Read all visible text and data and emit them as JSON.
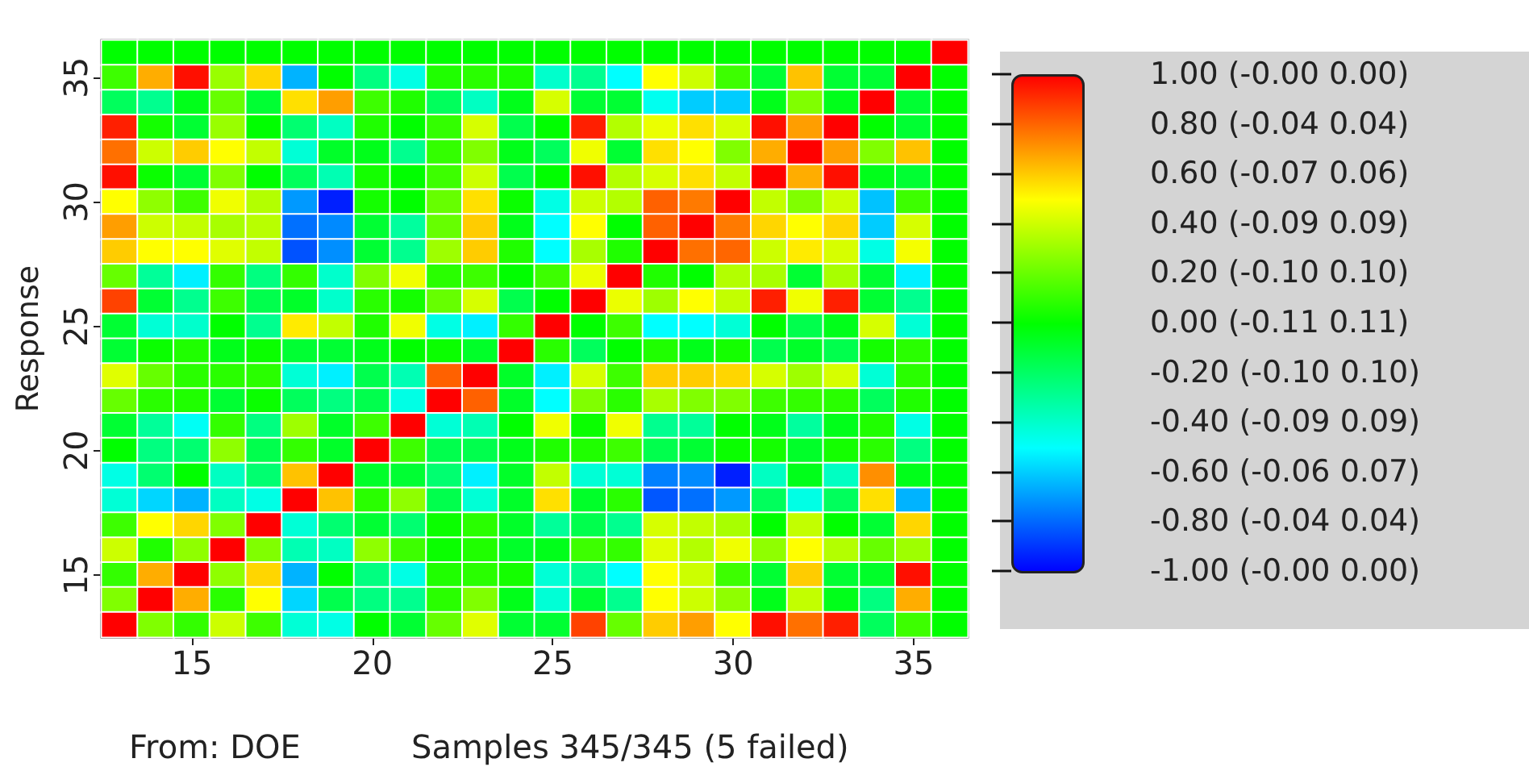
{
  "chart_data": {
    "type": "heatmap",
    "ylabel": "Response",
    "categories": [
      null,
      null,
      "15",
      null,
      null,
      null,
      null,
      "20",
      null,
      null,
      null,
      null,
      "25",
      null,
      null,
      null,
      null,
      "30",
      null,
      null,
      null,
      null,
      "35",
      null
    ],
    "y_categories": [
      null,
      "35",
      null,
      null,
      null,
      null,
      "30",
      null,
      null,
      null,
      null,
      "25",
      null,
      null,
      null,
      null,
      "20",
      null,
      null,
      null,
      null,
      "15",
      null,
      null
    ],
    "cells": [
      [
        0,
        0,
        0,
        0,
        0,
        0,
        0,
        0,
        0,
        0,
        0,
        0,
        0,
        0,
        0,
        0,
        0,
        0,
        0,
        0,
        0,
        0,
        0,
        1
      ],
      [
        0.12,
        0.66,
        0.97,
        0.3,
        0.58,
        -0.65,
        0,
        -0.25,
        -0.45,
        0.06,
        0.08,
        0.05,
        -0.4,
        -0.28,
        -0.5,
        0.5,
        0.4,
        0.12,
        -0.1,
        0.62,
        -0.1,
        -0.1,
        1,
        0
      ],
      [
        -0.18,
        -0.28,
        -0.05,
        0.2,
        -0.1,
        0.56,
        0.69,
        0.12,
        0.06,
        -0.18,
        -0.38,
        -0.05,
        0.42,
        -0.1,
        -0.1,
        -0.47,
        -0.6,
        -0.6,
        -0.05,
        0.25,
        -0.05,
        1,
        -0.1,
        0
      ],
      [
        0.94,
        0.04,
        -0.1,
        0.3,
        0,
        -0.22,
        -0.38,
        0.06,
        0,
        0.1,
        0.42,
        -0.15,
        0,
        0.94,
        0.35,
        0.46,
        0.56,
        0.42,
        0.97,
        0.69,
        1,
        0,
        -0.1,
        0
      ],
      [
        0.78,
        0.4,
        0.6,
        0.5,
        0.38,
        -0.42,
        -0.08,
        -0.05,
        -0.28,
        0.1,
        0.25,
        -0.05,
        -0.18,
        0.47,
        -0.1,
        0.56,
        0.5,
        0.25,
        0.66,
        1,
        0.69,
        0.25,
        0.62,
        0
      ],
      [
        0.97,
        0.02,
        -0.1,
        0.25,
        0,
        -0.18,
        -0.35,
        0.04,
        0,
        0.12,
        0.4,
        -0.15,
        0,
        0.97,
        0.35,
        0.42,
        0.56,
        0.38,
        1,
        0.66,
        0.97,
        -0.05,
        -0.1,
        0
      ],
      [
        0.5,
        0.28,
        0.12,
        0.47,
        0.35,
        -0.7,
        -0.94,
        0.04,
        0,
        0.2,
        0.56,
        0.02,
        -0.45,
        0.4,
        0.35,
        0.81,
        0.76,
        1,
        0.38,
        0.25,
        0.4,
        -0.62,
        0.12,
        0
      ],
      [
        0.69,
        0.4,
        0.38,
        0.33,
        0.36,
        -0.78,
        -0.73,
        -0.1,
        -0.31,
        0.2,
        0.6,
        -0.05,
        -0.5,
        0.5,
        0,
        0.81,
        1,
        0.76,
        0.58,
        0.5,
        0.58,
        -0.6,
        0.42,
        0
      ],
      [
        0.6,
        0.5,
        0.5,
        0.44,
        0.38,
        -0.84,
        -0.72,
        -0.1,
        -0.28,
        0.31,
        0.6,
        0.06,
        -0.5,
        0.33,
        0.06,
        1,
        0.78,
        0.8,
        0.4,
        0.54,
        0.42,
        -0.45,
        0.48,
        0
      ],
      [
        0.2,
        -0.3,
        -0.53,
        0.1,
        -0.25,
        0.1,
        -0.4,
        0.25,
        0.47,
        0.08,
        0.12,
        0,
        0.12,
        0.46,
        1,
        0.06,
        0,
        0.35,
        0.33,
        -0.1,
        0.33,
        -0.1,
        -0.53,
        0
      ],
      [
        0.87,
        -0.1,
        -0.28,
        0.12,
        -0.15,
        -0.08,
        -0.4,
        0.08,
        0.04,
        0.2,
        0.42,
        -0.15,
        0,
        1,
        0.46,
        0.31,
        0.5,
        0.38,
        0.94,
        0.47,
        0.94,
        -0.1,
        -0.28,
        0
      ],
      [
        -0.1,
        -0.42,
        -0.4,
        0,
        -0.28,
        0.54,
        0.38,
        0.06,
        0.47,
        -0.45,
        -0.53,
        0.1,
        1,
        0,
        0.12,
        -0.5,
        -0.5,
        -0.42,
        0,
        -0.15,
        -0.05,
        0.42,
        -0.42,
        0
      ],
      [
        -0.1,
        0.02,
        0.06,
        -0.05,
        0.02,
        -0.1,
        -0.1,
        -0.05,
        0,
        0.02,
        -0.08,
        1,
        0.08,
        -0.18,
        0,
        0.06,
        -0.05,
        0.04,
        -0.15,
        -0.08,
        -0.15,
        0.04,
        0.08,
        0
      ],
      [
        0.44,
        0.2,
        0.08,
        0.08,
        0.08,
        -0.42,
        -0.53,
        -0.15,
        -0.35,
        0.81,
        1,
        -0.08,
        -0.53,
        0.42,
        0.12,
        0.6,
        0.6,
        0.58,
        0.42,
        0.31,
        0.42,
        -0.42,
        0.08,
        0
      ],
      [
        0.2,
        0.08,
        0.06,
        -0.1,
        0.02,
        -0.18,
        -0.25,
        -0.15,
        -0.45,
        1,
        0.81,
        -0.08,
        -0.5,
        0.25,
        0.08,
        0.33,
        0.25,
        0.25,
        0.12,
        0.1,
        0.08,
        -0.18,
        0.06,
        0
      ],
      [
        -0.1,
        -0.3,
        -0.48,
        0.1,
        -0.25,
        0.31,
        -0.08,
        0.12,
        1,
        -0.42,
        -0.35,
        0,
        0.47,
        0.02,
        0.47,
        -0.28,
        -0.3,
        0,
        -0.05,
        -0.31,
        -0.05,
        0.06,
        -0.45,
        0
      ],
      [
        0,
        -0.25,
        -0.22,
        0.28,
        -0.15,
        0.1,
        -0.08,
        1,
        0.12,
        -0.15,
        -0.15,
        -0.05,
        0.06,
        0.06,
        0.12,
        -0.15,
        -0.1,
        0.02,
        0.04,
        -0.08,
        0.04,
        0.08,
        -0.25,
        0
      ],
      [
        -0.45,
        -0.22,
        0,
        -0.38,
        -0.22,
        0.62,
        1,
        -0.08,
        -0.1,
        -0.22,
        -0.53,
        -0.08,
        0.38,
        -0.42,
        -0.42,
        -0.75,
        -0.73,
        -0.94,
        -0.38,
        -0.05,
        -0.38,
        0.72,
        -0.05,
        0
      ],
      [
        -0.42,
        -0.58,
        -0.65,
        -0.38,
        -0.45,
        1,
        0.62,
        0.08,
        0.28,
        -0.15,
        -0.42,
        -0.08,
        0.56,
        -0.08,
        0.08,
        -0.83,
        -0.78,
        -0.7,
        -0.18,
        -0.45,
        -0.18,
        0.56,
        -0.65,
        0
      ],
      [
        0.12,
        0.5,
        0.58,
        0.25,
        1,
        -0.42,
        -0.22,
        -0.1,
        -0.22,
        0.02,
        0.08,
        -0.08,
        -0.3,
        -0.15,
        -0.28,
        0.42,
        0.38,
        0.33,
        0,
        0.38,
        0,
        -0.1,
        0.58,
        0
      ],
      [
        0.4,
        0.06,
        0.28,
        1,
        0.25,
        -0.35,
        -0.38,
        0.28,
        0.12,
        0.02,
        0.06,
        -0.08,
        -0.05,
        0.12,
        0.1,
        0.44,
        0.35,
        0.47,
        0.28,
        0.5,
        0.35,
        0.2,
        0.31,
        0
      ],
      [
        0.1,
        0.66,
        1,
        0.28,
        0.58,
        -0.65,
        0,
        -0.25,
        -0.45,
        0.06,
        0.08,
        0.04,
        -0.42,
        -0.28,
        -0.5,
        0.5,
        0.4,
        0.12,
        -0.1,
        0.6,
        -0.1,
        -0.08,
        0.97,
        0
      ],
      [
        0.25,
        1,
        0.66,
        0.08,
        0.5,
        -0.58,
        -0.15,
        -0.25,
        -0.28,
        0.08,
        0.25,
        -0.05,
        -0.42,
        -0.1,
        -0.28,
        0.5,
        0.4,
        0.28,
        -0.05,
        0.38,
        -0.05,
        -0.25,
        0.66,
        0
      ],
      [
        1,
        0.25,
        0.1,
        0.4,
        0.12,
        -0.42,
        -0.45,
        0,
        -0.1,
        0.2,
        0.44,
        -0.1,
        -0.1,
        0.87,
        0.2,
        0.6,
        0.69,
        0.5,
        0.97,
        0.78,
        0.94,
        -0.18,
        0.12,
        0
      ]
    ],
    "clim": [
      -1,
      1
    ],
    "cticks": [
      {
        "value": 1,
        "label": "1.00 (-0.00 0.00)"
      },
      {
        "value": 0.8,
        "label": "0.80 (-0.04 0.04)"
      },
      {
        "value": 0.6,
        "label": "0.60 (-0.07 0.06)"
      },
      {
        "value": 0.4,
        "label": "0.40 (-0.09 0.09)"
      },
      {
        "value": 0.2,
        "label": "0.20 (-0.10 0.10)"
      },
      {
        "value": 0,
        "label": "0.00 (-0.11 0.11)"
      },
      {
        "value": -0.2,
        "label": "-0.20 (-0.10 0.10)"
      },
      {
        "value": -0.4,
        "label": "-0.40 (-0.09 0.09)"
      },
      {
        "value": -0.6,
        "label": "-0.60 (-0.06 0.07)"
      },
      {
        "value": -0.8,
        "label": "-0.80 (-0.04 0.04)"
      },
      {
        "value": -1,
        "label": "-1.00 (-0.00 0.00)"
      }
    ],
    "annotations": [
      "From: DOE",
      "Samples 345/345 (5 failed)"
    ]
  }
}
